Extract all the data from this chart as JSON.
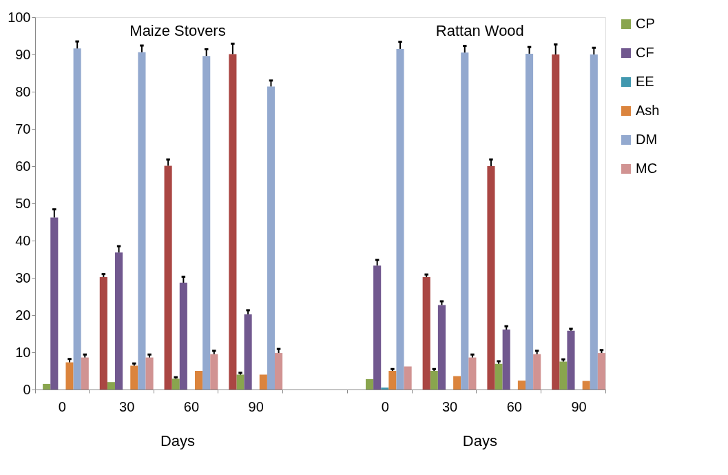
{
  "chart_data": {
    "type": "bar",
    "categories": [
      "0",
      "30",
      "60",
      "90",
      null,
      "0",
      "30",
      "60",
      "90"
    ],
    "ylim": [
      0,
      100
    ],
    "yticks": [
      0,
      10,
      20,
      30,
      40,
      50,
      60,
      70,
      80,
      90,
      100
    ],
    "legend": "right",
    "annotations": [
      "Maize Stovers",
      "Rattan Wood",
      "Days",
      "Days"
    ],
    "series": [
      {
        "color": "#aa4643",
        "values": [
          0,
          30.2,
          60.1,
          90.1,
          null,
          0,
          30.2,
          60.0,
          90.0
        ],
        "errors": [
          null,
          [
            30.2,
            31.0
          ],
          [
            60.1,
            61.8
          ],
          [
            90.1,
            92.9
          ],
          null,
          null,
          [
            30.2,
            30.9
          ],
          [
            60.0,
            61.8
          ],
          [
            90.0,
            92.7
          ]
        ]
      },
      {
        "name": "CP",
        "color": "#89a54e",
        "values": [
          1.5,
          2.0,
          2.9,
          4.0,
          null,
          2.8,
          5.0,
          6.9,
          7.5
        ],
        "errors": [
          null,
          null,
          [
            2.9,
            3.3
          ],
          [
            4.0,
            4.5
          ],
          null,
          null,
          [
            5.0,
            5.5
          ],
          [
            6.9,
            7.6
          ],
          [
            7.5,
            8.1
          ]
        ]
      },
      {
        "name": "CF",
        "color": "#71588f",
        "values": [
          46.2,
          36.8,
          28.7,
          20.2,
          null,
          33.3,
          22.7,
          16.1,
          15.8
        ],
        "errors": [
          [
            46.2,
            48.4
          ],
          [
            36.8,
            38.5
          ],
          [
            28.7,
            30.3
          ],
          [
            20.2,
            21.3
          ],
          null,
          [
            33.3,
            34.8
          ],
          [
            22.7,
            23.7
          ],
          [
            16.1,
            17.0
          ],
          [
            15.8,
            16.3
          ]
        ]
      },
      {
        "name": "EE",
        "color": "#4198af",
        "values": [
          null,
          null,
          null,
          null,
          null,
          0.5,
          null,
          null,
          null
        ]
      },
      {
        "name": "Ash",
        "color": "#db843d",
        "values": [
          7.3,
          6.4,
          5.0,
          4.0,
          null,
          5.0,
          3.6,
          2.4,
          2.3
        ],
        "errors": [
          [
            7.3,
            8.2
          ],
          [
            6.4,
            7.0
          ],
          null,
          null,
          null,
          [
            5.0,
            5.5
          ],
          null,
          null,
          null
        ]
      },
      {
        "name": "DM",
        "color": "#93a9cf",
        "values": [
          91.6,
          90.6,
          89.6,
          81.4,
          null,
          91.5,
          90.5,
          90.2,
          90.0
        ],
        "errors": [
          [
            91.6,
            93.5
          ],
          [
            90.6,
            92.4
          ],
          [
            89.6,
            91.4
          ],
          [
            81.4,
            83.0
          ],
          null,
          [
            91.5,
            93.4
          ],
          [
            90.5,
            92.3
          ],
          [
            90.2,
            92.0
          ],
          [
            90.0,
            91.8
          ]
        ]
      },
      {
        "name": "MC",
        "color": "#d19392",
        "values": [
          8.6,
          8.6,
          9.5,
          9.8,
          null,
          6.2,
          8.6,
          9.5,
          9.8
        ],
        "errors": [
          [
            8.6,
            9.4
          ],
          [
            8.6,
            9.4
          ],
          [
            9.5,
            10.4
          ],
          [
            9.8,
            10.9
          ],
          null,
          null,
          [
            8.6,
            9.4
          ],
          [
            9.5,
            10.4
          ],
          [
            9.8,
            10.6
          ]
        ]
      }
    ]
  }
}
